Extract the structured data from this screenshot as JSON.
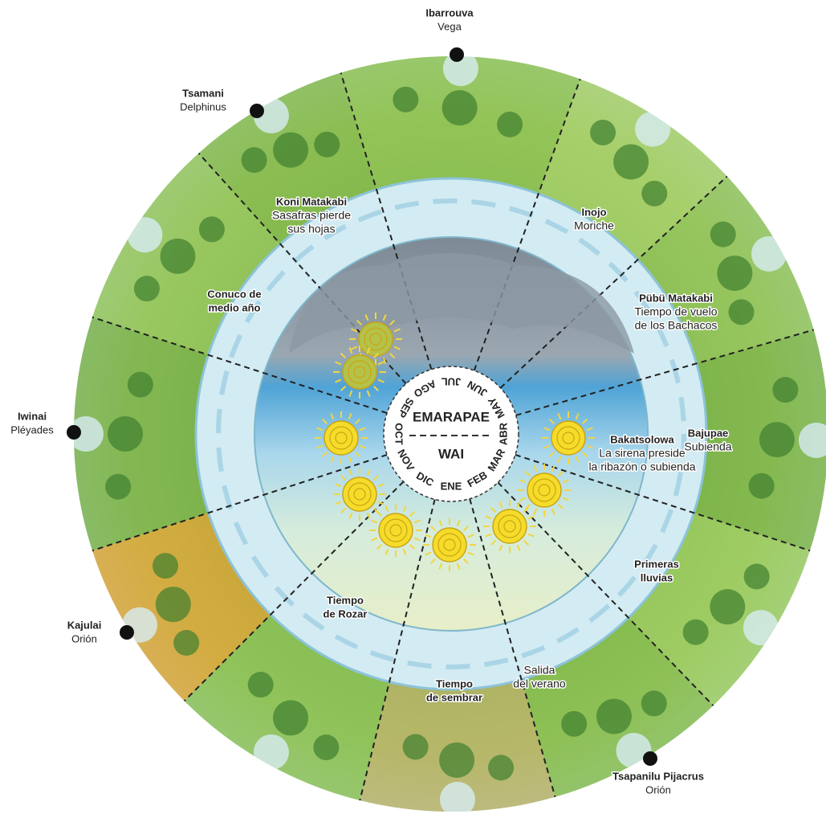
{
  "stars": [
    {
      "name": "Ibarrouva",
      "constellation": "Vega"
    },
    {
      "name": "Tsamani",
      "constellation": "Delphinus"
    },
    {
      "name": "Iwinai",
      "constellation": "Pléyades"
    },
    {
      "name": "Kajulai",
      "constellation": "Orión"
    },
    {
      "name": "Tsapanilu Pijacrus",
      "constellation": "Orión"
    }
  ],
  "seasons": [
    {
      "lines": [
        "Koni Matakabi",
        "Sasafras pierde",
        "sus hojas"
      ]
    },
    {
      "lines": [
        "Inojo",
        "Moriche"
      ]
    },
    {
      "lines": [
        "Pübü Matakabi",
        "Tiempo de vuelo",
        "de los Bachacos"
      ]
    },
    {
      "lines": [
        "Bajupae",
        "Subienda"
      ]
    },
    {
      "lines": [
        "Bakatsolowa",
        "La sirena preside",
        "la ribazón o subienda"
      ]
    },
    {
      "lines": [
        "Primeras",
        "lluvias"
      ]
    },
    {
      "lines": [
        "Conuco de",
        "medio año"
      ]
    },
    {
      "lines": [
        "Tiempo",
        "de Rozar"
      ]
    },
    {
      "lines": [
        "Tiempo",
        "de sembrar"
      ]
    },
    {
      "lines": [
        "Salida",
        "del verano"
      ]
    }
  ],
  "center": {
    "top": "EMARAPAE",
    "bottom": "WAI",
    "months": [
      "ABR",
      "MAR",
      "FEB",
      "ENE",
      "DIC",
      "NOV",
      "OCT",
      "SEP",
      "AGO",
      "JUL",
      "JUN",
      "MAY"
    ]
  }
}
